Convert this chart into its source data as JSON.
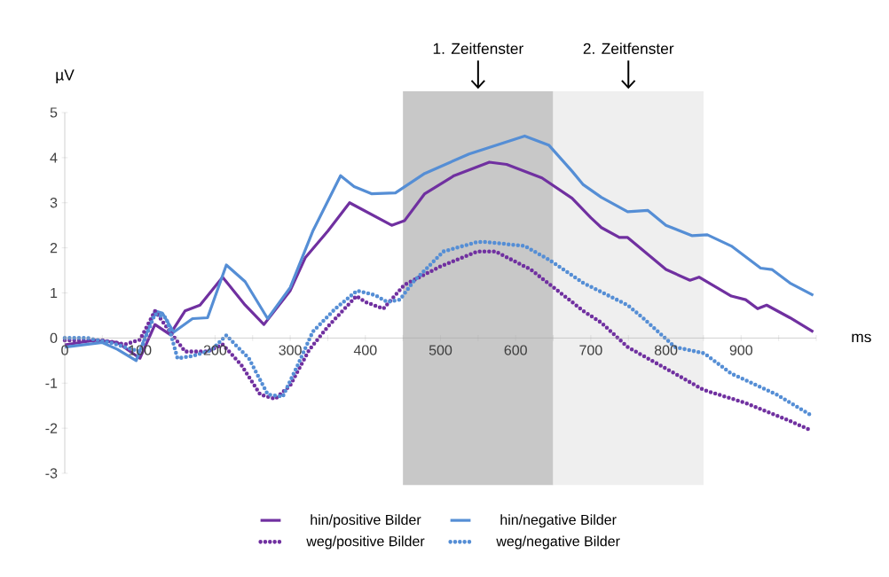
{
  "chart_data": {
    "type": "line",
    "xlabel": "ms",
    "ylabel": "µV",
    "xlim": [
      0,
      1000
    ],
    "ylim": [
      -3,
      5
    ],
    "xticks": [
      0,
      {
        "value": 50,
        "label": null
      },
      100,
      {
        "value": 150,
        "label": null
      },
      200,
      {
        "value": 250,
        "label": null
      },
      300,
      {
        "value": 350,
        "label": null
      },
      400,
      {
        "value": 450,
        "label": null
      },
      500,
      {
        "value": 550,
        "label": null
      },
      600,
      {
        "value": 650,
        "label": null
      },
      700,
      {
        "value": 750,
        "label": null
      },
      800,
      {
        "value": 850,
        "label": null
      },
      900,
      {
        "value": 950,
        "label": null
      },
      {
        "value": 1000,
        "label": null
      }
    ],
    "yticks": [
      -3,
      -2,
      -1,
      0,
      1,
      2,
      3,
      4,
      5
    ],
    "legend": "bottom",
    "bands": [
      {
        "axis": "x",
        "from": 450,
        "to": 650,
        "label": "1. Zeitfenster",
        "color": "#c8c8c8"
      },
      {
        "axis": "x",
        "from": 650,
        "to": 850,
        "label": "2. Zeitfenster",
        "color": "#efefef"
      }
    ],
    "series": [
      {
        "name": "hin/positive Bilder",
        "color": "#7030a0",
        "line_style": "solid",
        "x": [
          0,
          20,
          40,
          70,
          100,
          120,
          140,
          160,
          180,
          210,
          240,
          265,
          300,
          320,
          350,
          379,
          435,
          452,
          479,
          518,
          565,
          588,
          635,
          675,
          700,
          714,
          738,
          749,
          800,
          832,
          844,
          887,
          906,
          922,
          934,
          965,
          996
        ],
        "values": [
          -0.15,
          -0.1,
          -0.05,
          -0.1,
          -0.45,
          0.3,
          0.08,
          0.6,
          0.73,
          1.35,
          0.73,
          0.3,
          1.05,
          1.78,
          2.37,
          3.0,
          2.5,
          2.6,
          3.2,
          3.6,
          3.9,
          3.85,
          3.55,
          3.1,
          2.67,
          2.45,
          2.23,
          2.23,
          1.52,
          1.28,
          1.35,
          0.93,
          0.85,
          0.65,
          0.73,
          0.45,
          0.14
        ]
      },
      {
        "name": "hin/negative Bilder",
        "color": "#558ed5",
        "line_style": "solid",
        "x": [
          0,
          50,
          70,
          95,
          120,
          130,
          145,
          170,
          190,
          215,
          240,
          270,
          300,
          330,
          367,
          385,
          408,
          440,
          479,
          538,
          612,
          644,
          675,
          690,
          714,
          749,
          776,
          800,
          835,
          855,
          887,
          926,
          941,
          965,
          996
        ],
        "values": [
          -0.2,
          -0.1,
          -0.25,
          -0.5,
          0.6,
          0.55,
          0.13,
          0.43,
          0.45,
          1.62,
          1.25,
          0.43,
          1.12,
          2.37,
          3.6,
          3.36,
          3.2,
          3.22,
          3.65,
          4.08,
          4.48,
          4.28,
          3.7,
          3.4,
          3.12,
          2.8,
          2.83,
          2.5,
          2.27,
          2.29,
          2.04,
          1.55,
          1.52,
          1.22,
          0.95
        ]
      },
      {
        "name": "weg/positive Bilder",
        "color": "#7030a0",
        "line_style": "dotted",
        "x": [
          0,
          50,
          80,
          100,
          120,
          140,
          160,
          190,
          210,
          235,
          260,
          280,
          300,
          325,
          350,
          388,
          400,
          424,
          452,
          499,
          549,
          573,
          620,
          675,
          690,
          714,
          749,
          812,
          850,
          906,
          965,
          992
        ],
        "values": [
          -0.05,
          -0.05,
          -0.14,
          -0.04,
          0.6,
          0.14,
          -0.3,
          -0.3,
          -0.14,
          -0.6,
          -1.25,
          -1.35,
          -1.05,
          -0.27,
          0.25,
          0.93,
          0.8,
          0.65,
          1.18,
          1.58,
          1.92,
          1.92,
          1.52,
          0.8,
          0.6,
          0.34,
          -0.2,
          -0.79,
          -1.15,
          -1.44,
          -1.84,
          -2.04
        ]
      },
      {
        "name": "weg/negative Bilder",
        "color": "#558ed5",
        "line_style": "dotted",
        "x": [
          0,
          30,
          60,
          90,
          100,
          120,
          135,
          150,
          170,
          195,
          215,
          230,
          245,
          270,
          290,
          310,
          330,
          360,
          389,
          413,
          429,
          446,
          464,
          504,
          549,
          561,
          612,
          644,
          690,
          749,
          769,
          812,
          851,
          887,
          947,
          996
        ],
        "values": [
          0.0,
          0.0,
          -0.1,
          -0.25,
          -0.3,
          0.53,
          0.45,
          -0.45,
          -0.4,
          -0.27,
          0.06,
          -0.2,
          -0.45,
          -1.25,
          -1.3,
          -0.6,
          0.14,
          0.65,
          1.05,
          0.95,
          0.8,
          0.85,
          1.25,
          1.92,
          2.13,
          2.13,
          2.04,
          1.74,
          1.22,
          0.73,
          0.45,
          -0.2,
          -0.34,
          -0.79,
          -1.25,
          -1.74
        ]
      }
    ]
  }
}
